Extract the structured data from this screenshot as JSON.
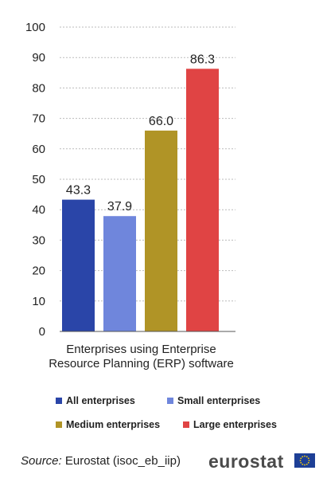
{
  "chart_data": {
    "type": "bar",
    "categories": [
      "Enterprises using Enterprise Resource Planning (ERP) software"
    ],
    "series": [
      {
        "name": "All enterprises",
        "values": [
          43.3
        ],
        "color": "#2a45a8"
      },
      {
        "name": "Small enterprises",
        "values": [
          37.9
        ],
        "color": "#6f86dc"
      },
      {
        "name": "Medium enterprises",
        "values": [
          66.0
        ],
        "color": "#b09426"
      },
      {
        "name": "Large enterprises",
        "values": [
          86.3
        ],
        "color": "#e04444"
      }
    ],
    "data_labels": [
      "43.3",
      "37.9",
      "66.0",
      "86.3"
    ],
    "yticks": [
      "0",
      "10",
      "20",
      "30",
      "40",
      "50",
      "60",
      "70",
      "80",
      "90",
      "100"
    ],
    "ylim": [
      0,
      100
    ],
    "grid": true,
    "legend_position": "bottom"
  },
  "footer": {
    "source_label": "Source:",
    "source_text": "Eurostat (isoc_eb_iip)",
    "brand": "eurostat",
    "flag_icon": "eu-flag-icon"
  }
}
